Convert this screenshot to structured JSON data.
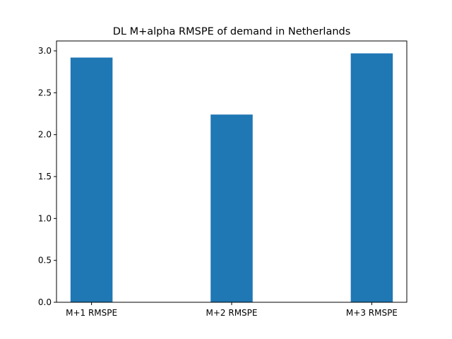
{
  "chart_data": {
    "type": "bar",
    "title": "DL M+alpha RMSPE of demand in Netherlands",
    "xlabel": "",
    "ylabel": "",
    "categories": [
      "M+1 RMSPE",
      "M+2 RMSPE",
      "M+3 RMSPE"
    ],
    "values": [
      2.92,
      2.24,
      2.97
    ],
    "ylim": [
      0,
      3.118
    ],
    "yticks": [
      0.0,
      0.5,
      1.0,
      1.5,
      2.0,
      2.5,
      3.0
    ],
    "ytick_labels": [
      "0.0",
      "0.5",
      "1.0",
      "1.5",
      "2.0",
      "2.5",
      "3.0"
    ],
    "bar_color": "#1f77b4",
    "grid": false,
    "legend": false
  }
}
